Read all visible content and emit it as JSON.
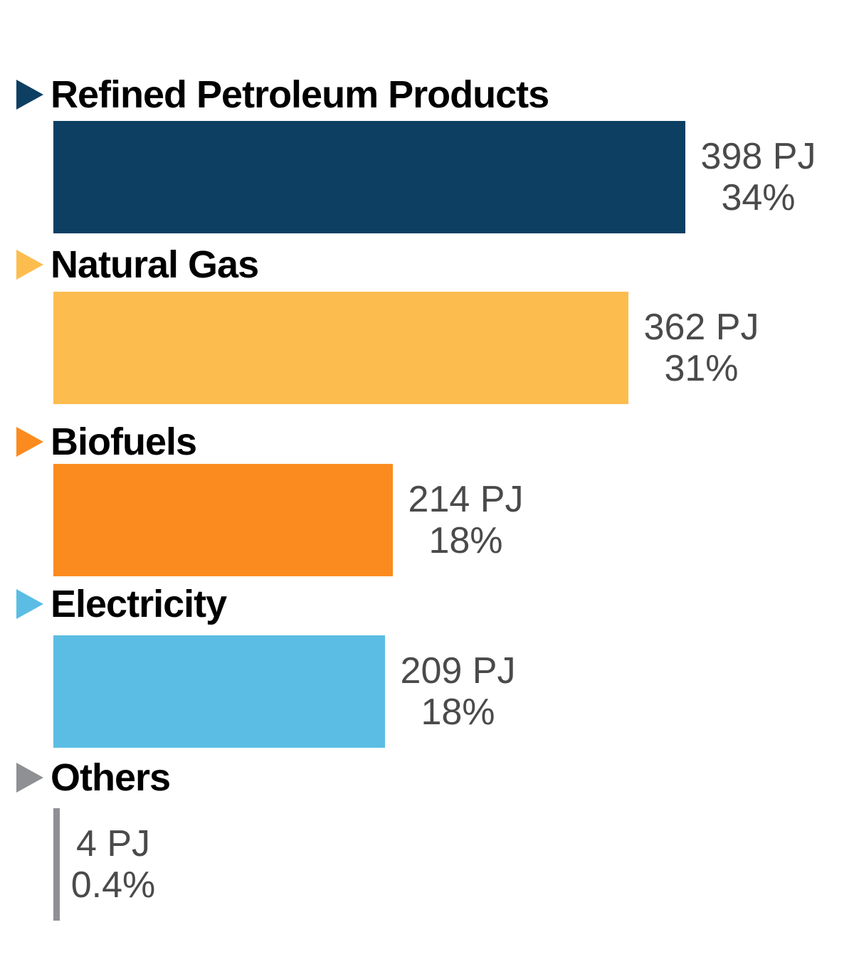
{
  "chart_data": {
    "type": "bar",
    "orientation": "horizontal",
    "unit": "PJ",
    "title": "",
    "xlabel": "",
    "ylabel": "",
    "grid": false,
    "legend_position": "none",
    "categories": [
      "Refined Petroleum Products",
      "Natural Gas",
      "Biofuels",
      "Electricity",
      "Others"
    ],
    "series": [
      {
        "label": "Refined Petroleum Products",
        "value_pj": 398,
        "value_label": "398 PJ",
        "percent": 34,
        "percent_label": "34%",
        "color": "#0D3F63"
      },
      {
        "label": "Natural Gas",
        "value_pj": 362,
        "value_label": "362 PJ",
        "percent": 31,
        "percent_label": "31%",
        "color": "#FDBD4E"
      },
      {
        "label": "Biofuels",
        "value_pj": 214,
        "value_label": "214 PJ",
        "percent": 18,
        "percent_label": "18%",
        "color": "#FB8B1E"
      },
      {
        "label": "Electricity",
        "value_pj": 209,
        "value_label": "209 PJ",
        "percent": 18,
        "percent_label": "18%",
        "color": "#5BBDE4"
      },
      {
        "label": "Others",
        "value_pj": 4,
        "value_label": "4 PJ",
        "percent": 0.4,
        "percent_label": "0.4%",
        "color": "#8E9093"
      }
    ],
    "colors": {
      "background": "#FFFFFF",
      "category_text": "#000000",
      "value_text": "#4A4A4C"
    }
  }
}
